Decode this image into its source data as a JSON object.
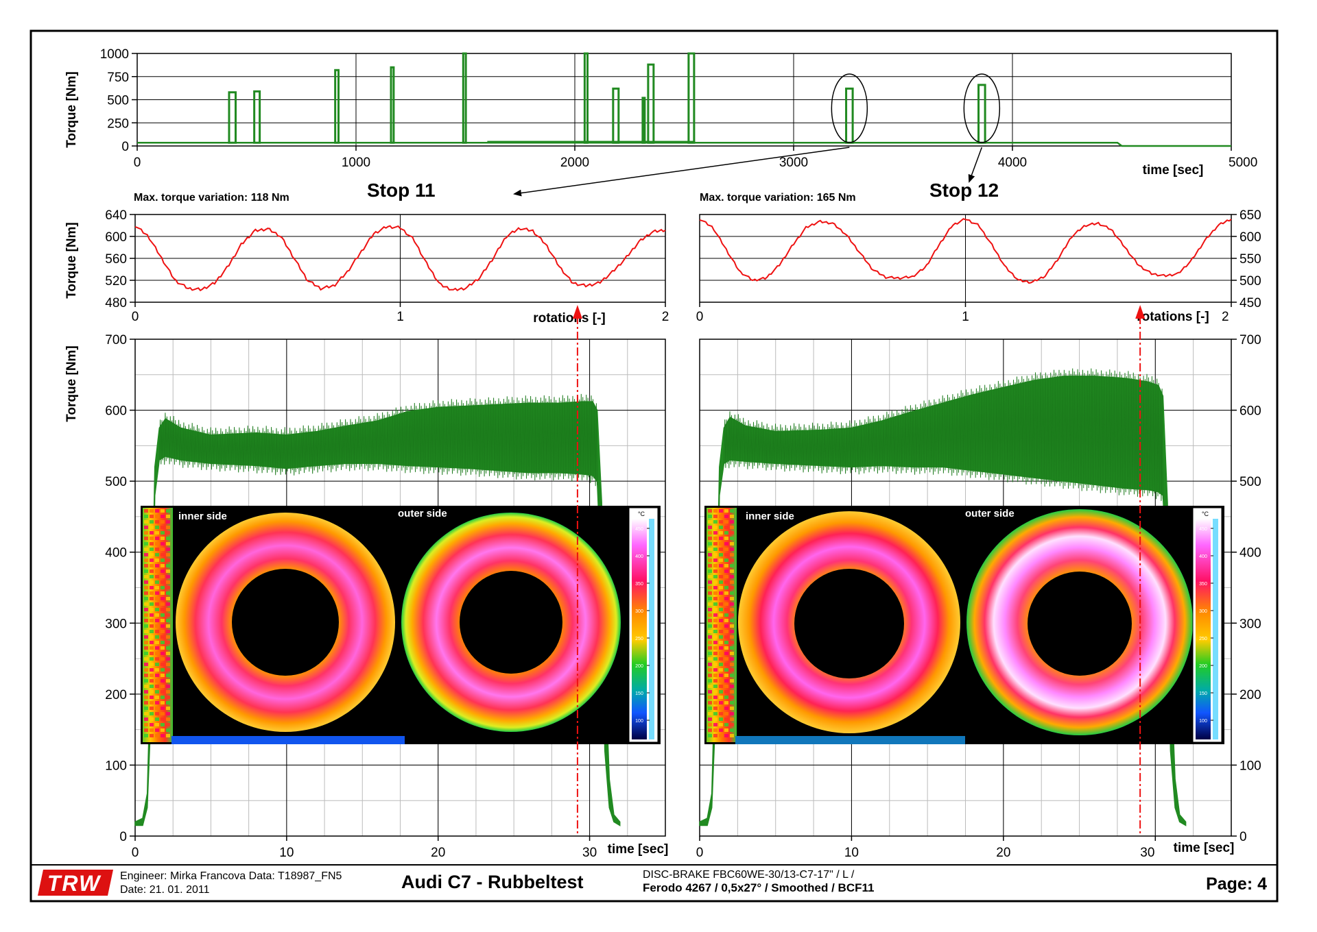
{
  "footer": {
    "logo": "TRW",
    "engineer_line": "Engineer: Mirka Francova Data: T18987_FN5",
    "date_line": "Date: 21. 01. 2011",
    "title": "Audi C7 - Rubbeltest",
    "brake_line": "DISC-BRAKE FBC60WE-30/13-C7-17\" / L /",
    "pad_line": "Ferodo 4267 / 0,5x27° / Smoothed / BCF11",
    "page": "Page: 4"
  },
  "colors": {
    "torque_trace": "#218a21",
    "rotation_trace": "#ee1111",
    "marker": "#ee1111",
    "thermo_background": "#000000",
    "grid_major": "#000000",
    "grid_minor": "#bbbbbb"
  },
  "chart_data": [
    {
      "id": "overview",
      "type": "line",
      "title": "",
      "xlabel": "time [sec]",
      "ylabel": "Torque [Nm]",
      "xlim": [
        0,
        5000
      ],
      "ylim": [
        0,
        1000
      ],
      "x_ticks": [
        0,
        1000,
        2000,
        3000,
        4000,
        5000
      ],
      "y_ticks": [
        0,
        250,
        500,
        750,
        1000
      ],
      "baseline_torque": 35,
      "series": [
        {
          "peaks": [
            {
              "start": 420,
              "end": 450,
              "value": 580
            },
            {
              "start": 535,
              "end": 560,
              "value": 590
            },
            {
              "start": 905,
              "end": 920,
              "value": 820
            },
            {
              "start": 1160,
              "end": 1172,
              "value": 850
            },
            {
              "start": 1490,
              "end": 1502,
              "value": 1000
            },
            {
              "start": 2045,
              "end": 2058,
              "value": 1000
            },
            {
              "start": 2175,
              "end": 2200,
              "value": 620
            },
            {
              "start": 2310,
              "end": 2318,
              "value": 520
            },
            {
              "start": 2335,
              "end": 2360,
              "value": 880
            },
            {
              "start": 2520,
              "end": 2545,
              "value": 1000
            },
            {
              "start": 3240,
              "end": 3270,
              "value": 620
            },
            {
              "start": 3845,
              "end": 3875,
              "value": 660
            }
          ]
        }
      ],
      "annotations": [
        {
          "label": "Stop 11",
          "target_time": 3255
        },
        {
          "label": "Stop 12",
          "target_time": 3860
        }
      ]
    },
    {
      "id": "stop11_rotation",
      "type": "line",
      "title": "Stop 11",
      "note": "Max. torque variation: 118 Nm",
      "xlabel": "rotations [-]",
      "ylabel": "Torque [Nm]",
      "xlim": [
        0,
        2
      ],
      "ylim": [
        480,
        640
      ],
      "x_ticks": [
        0,
        1,
        2
      ],
      "y_ticks": [
        480,
        520,
        560,
        600,
        640
      ],
      "series": [
        {
          "x": [
            0,
            0.05,
            0.1,
            0.15,
            0.2,
            0.25,
            0.3,
            0.35,
            0.4,
            0.45,
            0.5,
            0.55,
            0.6,
            0.65,
            0.7,
            0.75,
            0.8,
            0.85,
            0.9,
            0.95,
            1.0,
            1.05,
            1.1,
            1.15,
            1.2,
            1.25,
            1.3,
            1.35,
            1.4,
            1.45,
            1.5,
            1.55,
            1.6,
            1.65,
            1.7,
            1.75,
            1.8,
            1.85,
            1.9,
            1.95,
            2.0
          ],
          "y": [
            620,
            600,
            560,
            520,
            505,
            503,
            515,
            545,
            585,
            610,
            614,
            600,
            560,
            520,
            505,
            510,
            535,
            570,
            605,
            618,
            616,
            595,
            550,
            512,
            502,
            506,
            525,
            560,
            600,
            615,
            610,
            585,
            545,
            515,
            510,
            515,
            535,
            560,
            590,
            608,
            612
          ]
        }
      ]
    },
    {
      "id": "stop12_rotation",
      "type": "line",
      "title": "Stop 12",
      "note": "Max. torque variation: 165 Nm",
      "xlabel": "rotations [-]",
      "ylabel": "",
      "xlim": [
        0,
        2
      ],
      "ylim": [
        450,
        650
      ],
      "x_ticks": [
        0,
        1,
        2
      ],
      "y_ticks": [
        450,
        500,
        550,
        600,
        650
      ],
      "series": [
        {
          "x": [
            0,
            0.05,
            0.1,
            0.15,
            0.2,
            0.25,
            0.3,
            0.35,
            0.4,
            0.45,
            0.5,
            0.55,
            0.6,
            0.65,
            0.7,
            0.75,
            0.8,
            0.85,
            0.9,
            0.95,
            1.0,
            1.05,
            1.1,
            1.15,
            1.2,
            1.25,
            1.3,
            1.35,
            1.4,
            1.45,
            1.5,
            1.55,
            1.6,
            1.65,
            1.7,
            1.75,
            1.8,
            1.85,
            1.9,
            1.95,
            2.0
          ],
          "y": [
            640,
            620,
            570,
            520,
            500,
            505,
            535,
            580,
            620,
            634,
            630,
            605,
            565,
            525,
            507,
            505,
            508,
            530,
            580,
            625,
            640,
            625,
            580,
            530,
            500,
            495,
            510,
            550,
            600,
            625,
            630,
            615,
            575,
            535,
            515,
            510,
            515,
            545,
            590,
            625,
            640
          ]
        }
      ]
    },
    {
      "id": "stop11_time",
      "type": "line",
      "title": "",
      "xlabel": "time [sec]",
      "ylabel": "Torque [Nm]",
      "xlim": [
        0,
        35
      ],
      "ylim": [
        0,
        700
      ],
      "x_ticks": [
        0,
        10,
        20,
        30
      ],
      "y_ticks": [
        0,
        100,
        200,
        300,
        400,
        500,
        600,
        700
      ],
      "marker_time": 29.2,
      "series": [
        {
          "x": [
            0,
            0.5,
            0.8,
            1.1,
            1.3,
            1.6,
            2.0,
            3,
            5,
            8,
            10,
            12,
            14,
            16,
            18,
            20,
            22,
            24,
            26,
            28,
            29.5,
            30.2,
            30.5,
            30.8,
            31.0,
            31.3,
            31.6,
            32.0
          ],
          "upper": [
            20,
            25,
            60,
            300,
            520,
            575,
            588,
            575,
            565,
            568,
            565,
            570,
            578,
            585,
            598,
            604,
            606,
            608,
            610,
            610,
            612,
            612,
            600,
            470,
            250,
            80,
            30,
            20
          ],
          "lower": [
            15,
            15,
            40,
            200,
            480,
            530,
            535,
            530,
            525,
            522,
            518,
            522,
            525,
            525,
            522,
            520,
            518,
            515,
            512,
            512,
            510,
            508,
            500,
            350,
            120,
            40,
            20,
            15
          ]
        }
      ]
    },
    {
      "id": "stop12_time",
      "type": "line",
      "title": "",
      "xlabel": "time [sec]",
      "ylabel": "",
      "xlim": [
        0,
        35
      ],
      "ylim": [
        0,
        700
      ],
      "x_ticks": [
        0,
        10,
        20,
        30
      ],
      "y_ticks": [
        0,
        100,
        200,
        300,
        400,
        500,
        600,
        700
      ],
      "marker_time": 29.0,
      "series": [
        {
          "x": [
            0,
            0.5,
            0.8,
            1.1,
            1.3,
            1.6,
            2.0,
            3,
            5,
            8,
            10,
            12,
            14,
            16,
            18,
            20,
            22,
            24,
            26,
            28,
            29.5,
            30.2,
            30.5,
            30.8,
            31.0,
            31.3,
            31.6,
            32.0
          ],
          "upper": [
            20,
            25,
            60,
            300,
            520,
            575,
            590,
            578,
            570,
            572,
            575,
            585,
            598,
            610,
            622,
            632,
            642,
            648,
            648,
            645,
            640,
            635,
            620,
            470,
            250,
            80,
            30,
            20
          ],
          "lower": [
            15,
            15,
            40,
            200,
            480,
            525,
            530,
            528,
            525,
            522,
            520,
            522,
            520,
            520,
            515,
            510,
            505,
            500,
            495,
            490,
            488,
            485,
            480,
            350,
            120,
            40,
            20,
            15
          ]
        }
      ]
    }
  ],
  "thermograms": [
    {
      "id": "stop11",
      "inner_label": "inner side",
      "outer_label": "outer side",
      "scale": {
        "unit": "°C",
        "ticks": [
          "450",
          "400",
          "350",
          "300",
          "250",
          "200",
          "150",
          "100"
        ]
      }
    },
    {
      "id": "stop12",
      "inner_label": "inner side",
      "outer_label": "outer side",
      "scale": {
        "unit": "°C",
        "ticks": [
          "450",
          "400",
          "350",
          "300",
          "250",
          "200",
          "150",
          "100"
        ]
      }
    }
  ]
}
